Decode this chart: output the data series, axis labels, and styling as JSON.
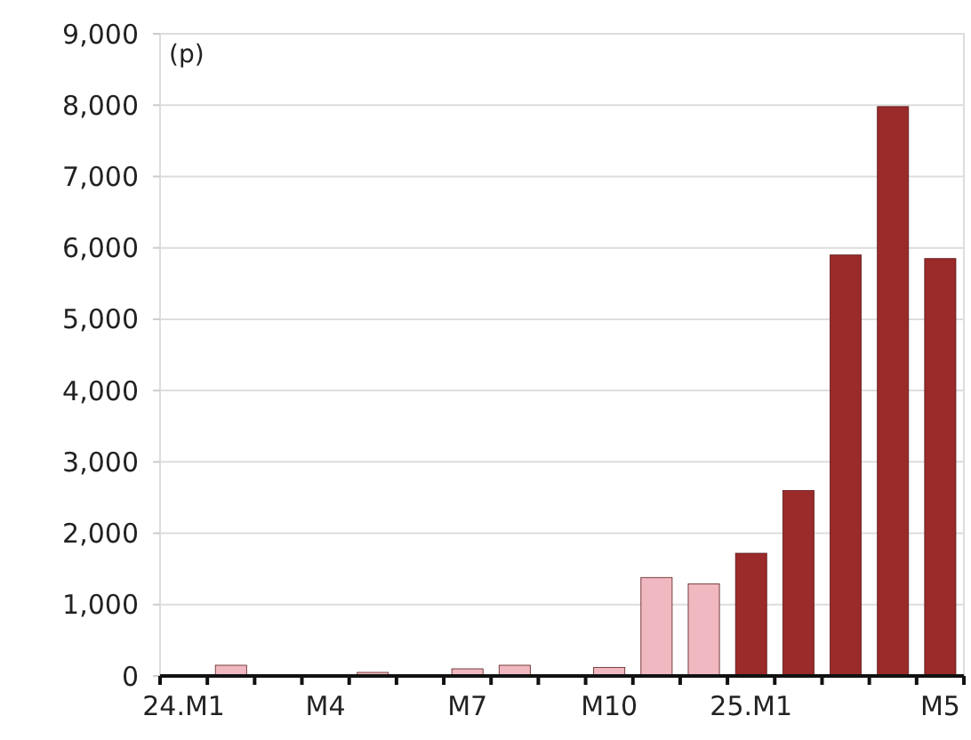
{
  "chart_data": {
    "type": "bar",
    "ylabel": "(p)",
    "categories": [
      "24.M1",
      null,
      null,
      "M4",
      null,
      null,
      "M7",
      null,
      null,
      "M10",
      null,
      null,
      "25.M1",
      null,
      null,
      null,
      "M5"
    ],
    "values": [
      0,
      150,
      0,
      0,
      50,
      0,
      100,
      150,
      20,
      120,
      1380,
      1290,
      1720,
      2600,
      5900,
      7980,
      5850
    ],
    "colors": [
      "#f0b8c0",
      "#f0b8c0",
      "#f0b8c0",
      "#f0b8c0",
      "#f0b8c0",
      "#f0b8c0",
      "#f0b8c0",
      "#f0b8c0",
      "#f0b8c0",
      "#f0b8c0",
      "#f0b8c0",
      "#f0b8c0",
      "#9b2a2a",
      "#9b2a2a",
      "#9b2a2a",
      "#9b2a2a",
      "#9b2a2a"
    ],
    "ylim": [
      0,
      9000
    ],
    "yticks": [
      {
        "value": 0,
        "label": "0"
      },
      {
        "value": 1000,
        "label": "1,000"
      },
      {
        "value": 2000,
        "label": "2,000"
      },
      {
        "value": 3000,
        "label": "3,000"
      },
      {
        "value": 4000,
        "label": "4,000"
      },
      {
        "value": 5000,
        "label": "5,000"
      },
      {
        "value": 6000,
        "label": "6,000"
      },
      {
        "value": 7000,
        "label": "7,000"
      },
      {
        "value": 8000,
        "label": "8,000"
      },
      {
        "value": 9000,
        "label": "9,000"
      }
    ],
    "grid": "y"
  }
}
